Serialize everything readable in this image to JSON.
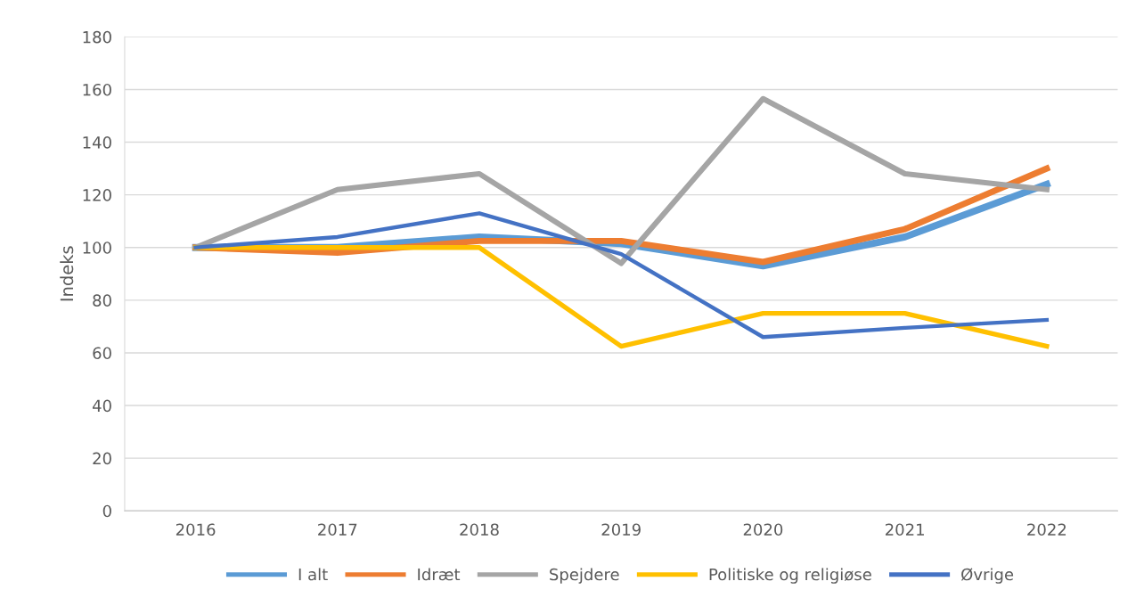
{
  "chart_data": {
    "type": "line",
    "ylabel": "Indeks",
    "categories": [
      "2016",
      "2017",
      "2018",
      "2019",
      "2020",
      "2021",
      "2022"
    ],
    "series": [
      {
        "name": "I alt",
        "color": "#5b9bd5",
        "values": [
          100,
          100,
          104,
          101.5,
          93,
          104,
          124
        ]
      },
      {
        "name": "Idræt",
        "color": "#ed7d31",
        "values": [
          100,
          98,
          102.5,
          102.5,
          94.5,
          107,
          130
        ]
      },
      {
        "name": "Spejdere",
        "color": "#a5a5a5",
        "values": [
          100,
          122,
          128,
          94,
          156.5,
          128,
          122
        ]
      },
      {
        "name": "Politiske og religiøse",
        "color": "#ffc000",
        "values": [
          100,
          100,
          100,
          62.5,
          75,
          75,
          62.5
        ]
      },
      {
        "name": "Øvrige",
        "color": "#4472c4",
        "values": [
          100,
          104,
          113,
          97.5,
          66,
          69.5,
          72.5
        ]
      }
    ],
    "ylim": [
      0,
      180
    ],
    "yticks": [
      0,
      20,
      40,
      60,
      80,
      100,
      120,
      140,
      160,
      180
    ],
    "grid": "y",
    "legend": "bottom",
    "marker": "none",
    "line_style": "solid"
  }
}
